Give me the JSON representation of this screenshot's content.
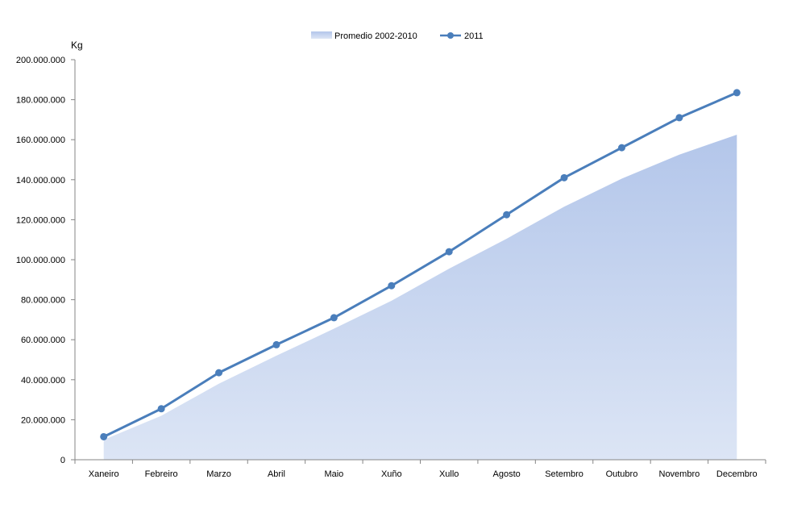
{
  "chart_data": {
    "type": "area",
    "unit_label": "Kg",
    "categories": [
      "Xaneiro",
      "Febreiro",
      "Marzo",
      "Abril",
      "Maio",
      "Xuño",
      "Xullo",
      "Agosto",
      "Setembro",
      "Outubro",
      "Novembro",
      "Decembro"
    ],
    "ylim": [
      0,
      200000000
    ],
    "yticks": [
      0,
      20000000,
      40000000,
      60000000,
      80000000,
      100000000,
      120000000,
      140000000,
      160000000,
      180000000,
      200000000
    ],
    "ytick_labels": [
      "0",
      "20.000.000",
      "40.000.000",
      "60.000.000",
      "80.000.000",
      "100.000.000",
      "120.000.000",
      "140.000.000",
      "160.000.000",
      "180.000.000",
      "200.000.000"
    ],
    "grid": false,
    "legend_position": "top-center",
    "series": [
      {
        "name": "Promedio 2002-2010",
        "kind": "area",
        "color": "#b4c7e7",
        "values": [
          10000000,
          22000000,
          38000000,
          52000000,
          65500000,
          79500000,
          95500000,
          110500000,
          126500000,
          140500000,
          152500000,
          162500000
        ]
      },
      {
        "name": "2011",
        "kind": "line",
        "color": "#4a7ebb",
        "values": [
          11500000,
          25500000,
          43500000,
          57500000,
          71000000,
          87000000,
          104000000,
          122500000,
          141000000,
          156000000,
          171000000,
          183500000
        ]
      }
    ]
  }
}
